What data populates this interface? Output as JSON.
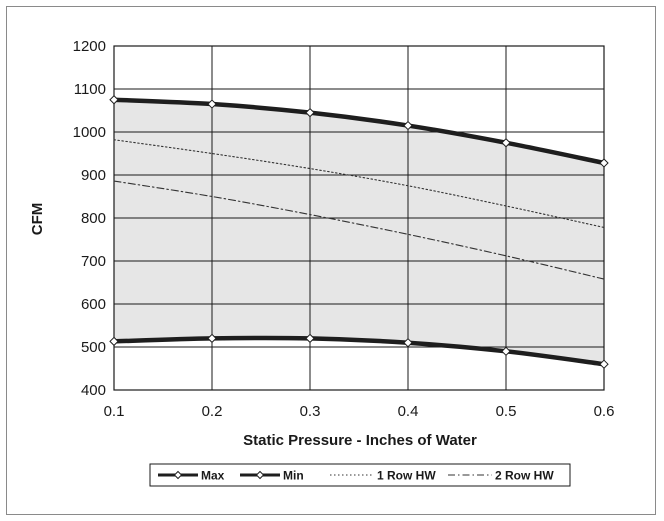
{
  "chart_data": {
    "type": "line",
    "title": "",
    "xlabel": "Static Pressure - Inches of Water",
    "ylabel": "CFM",
    "xlim": [
      0.1,
      0.6
    ],
    "ylim": [
      400,
      1200
    ],
    "x_ticks": [
      "0.1",
      "0.2",
      "0.3",
      "0.4",
      "0.5",
      "0.6"
    ],
    "y_ticks": [
      "400",
      "500",
      "600",
      "700",
      "800",
      "900",
      "1000",
      "1100",
      "1200"
    ],
    "grid": true,
    "legend_position": "bottom",
    "shaded_region": {
      "between": [
        "Max",
        "Min"
      ],
      "color": "#e6e6e6"
    },
    "series": [
      {
        "name": "Max",
        "style": "thick-solid-markers",
        "x": [
          0.1,
          0.2,
          0.3,
          0.4,
          0.5,
          0.6
        ],
        "y": [
          1075,
          1065,
          1045,
          1015,
          975,
          928
        ]
      },
      {
        "name": "Min",
        "style": "thick-solid-markers",
        "x": [
          0.1,
          0.2,
          0.3,
          0.4,
          0.5,
          0.6
        ],
        "y": [
          513,
          520,
          520,
          510,
          490,
          460
        ]
      },
      {
        "name": "1 Row HW",
        "style": "dotted",
        "x": [
          0.1,
          0.2,
          0.3,
          0.4,
          0.5,
          0.6
        ],
        "y": [
          982,
          950,
          915,
          875,
          828,
          778
        ]
      },
      {
        "name": "2 Row HW",
        "style": "dash-dot",
        "x": [
          0.1,
          0.2,
          0.3,
          0.4,
          0.5,
          0.6
        ],
        "y": [
          886,
          850,
          808,
          762,
          712,
          658
        ]
      }
    ]
  }
}
